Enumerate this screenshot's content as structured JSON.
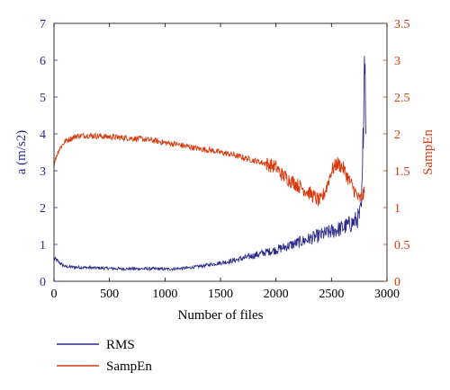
{
  "chart_data": {
    "type": "line",
    "xlabel": "Number of files",
    "ylabel_left": "a (m/s2)",
    "ylabel_right": "SampEn",
    "xlim": [
      0,
      3000
    ],
    "ylim_left": [
      0,
      7
    ],
    "ylim_right": [
      0,
      3.5
    ],
    "xticks": [
      0,
      500,
      1000,
      1500,
      2000,
      2500,
      3000
    ],
    "yticks_left": [
      0,
      1,
      2,
      3,
      4,
      5,
      6,
      7
    ],
    "yticks_right": [
      0,
      0.5,
      1,
      1.5,
      2,
      2.5,
      3,
      3.5
    ],
    "grid": false,
    "legend_position": "below",
    "series": [
      {
        "name": "RMS",
        "axis": "left",
        "color": "#2e2a8c",
        "x": [
          0,
          20,
          50,
          100,
          200,
          300,
          400,
          500,
          600,
          700,
          800,
          900,
          1000,
          1100,
          1200,
          1300,
          1400,
          1500,
          1600,
          1700,
          1800,
          1900,
          2000,
          2100,
          2200,
          2300,
          2400,
          2500,
          2600,
          2700,
          2750,
          2770,
          2780,
          2790,
          2800,
          2810
        ],
        "values": [
          0.6,
          0.58,
          0.5,
          0.4,
          0.38,
          0.37,
          0.36,
          0.35,
          0.34,
          0.34,
          0.34,
          0.34,
          0.33,
          0.34,
          0.36,
          0.4,
          0.45,
          0.5,
          0.55,
          0.62,
          0.7,
          0.78,
          0.85,
          0.95,
          1.05,
          1.15,
          1.25,
          1.35,
          1.45,
          1.6,
          1.75,
          2.0,
          3.0,
          5.0,
          6.7,
          4.0
        ]
      },
      {
        "name": "SampEn",
        "axis": "right",
        "color": "#d83a10",
        "x": [
          0,
          20,
          50,
          100,
          200,
          300,
          400,
          500,
          600,
          700,
          800,
          900,
          1000,
          1100,
          1200,
          1300,
          1400,
          1500,
          1600,
          1700,
          1800,
          1900,
          2000,
          2050,
          2100,
          2200,
          2300,
          2400,
          2450,
          2500,
          2550,
          2600,
          2650,
          2700,
          2750,
          2800
        ],
        "values": [
          1.58,
          1.7,
          1.8,
          1.9,
          1.97,
          1.98,
          1.97,
          1.96,
          1.95,
          1.94,
          1.93,
          1.91,
          1.88,
          1.86,
          1.83,
          1.8,
          1.78,
          1.75,
          1.72,
          1.68,
          1.64,
          1.6,
          1.55,
          1.45,
          1.4,
          1.3,
          1.2,
          1.08,
          1.25,
          1.5,
          1.6,
          1.55,
          1.4,
          1.25,
          1.1,
          1.2
        ]
      }
    ]
  }
}
